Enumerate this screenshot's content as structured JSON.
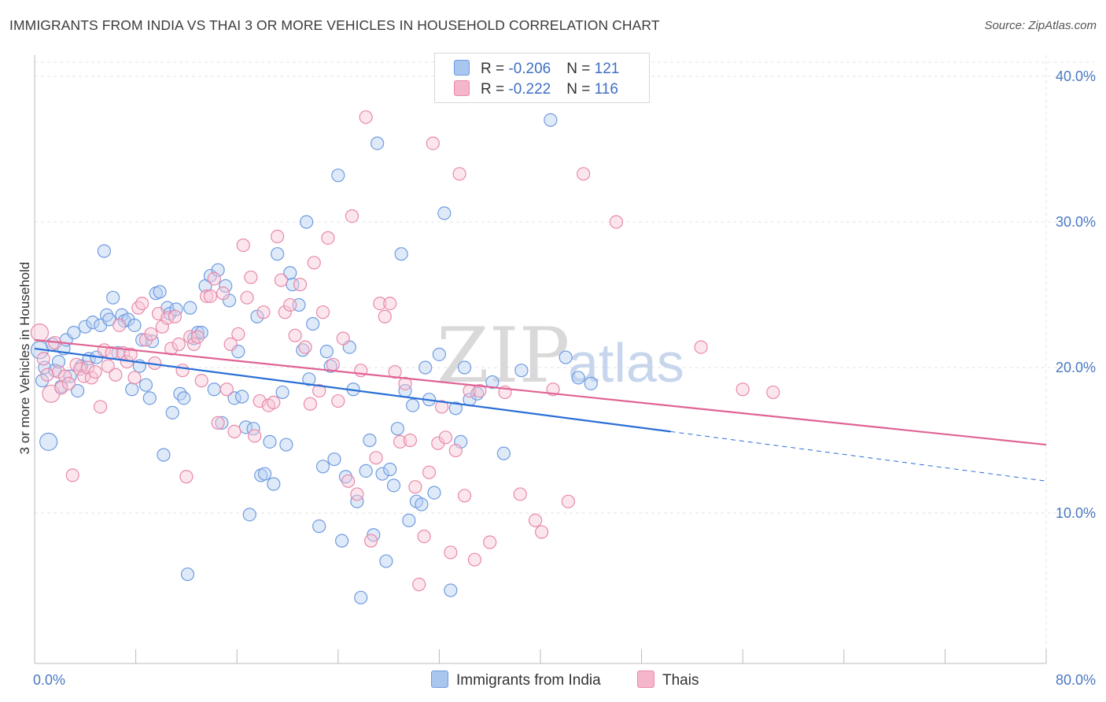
{
  "header": {
    "title": "IMMIGRANTS FROM INDIA VS THAI 3 OR MORE VEHICLES IN HOUSEHOLD CORRELATION CHART",
    "source": "Source: ZipAtlas.com"
  },
  "legend": {
    "rows": [
      {
        "r_label": "R = ",
        "r_value": "-0.206",
        "n_label": "N = ",
        "n_value": "121",
        "color": "#a9c6ee"
      },
      {
        "r_label": "R = ",
        "r_value": "-0.222",
        "n_label": "N = ",
        "n_value": "116",
        "color": "#f5b6cc"
      }
    ]
  },
  "watermark": {
    "zip": "ZIP",
    "atlas": "atlas"
  },
  "chart_data": {
    "type": "scatter",
    "ylabel": "3 or more Vehicles in Household",
    "xlim": [
      0,
      80
    ],
    "ylim": [
      0,
      42
    ],
    "x_tick_labels": [
      "0.0%",
      "80.0%"
    ],
    "y_ticks": [
      10,
      20,
      30,
      40
    ],
    "y_tick_labels": [
      "10.0%",
      "20.0%",
      "30.0%",
      "40.0%"
    ],
    "grid": true,
    "series": [
      {
        "name": "Immigrants from India",
        "color": "#6f9be0",
        "fill": "#b9d0f2",
        "trend": {
          "x0": 0,
          "y0": 21.3,
          "x1": 50.3,
          "y1": 15.6,
          "dash_to_x": 80,
          "dash_to_y": 12.2
        },
        "points": [
          [
            0.4,
            21.2
          ],
          [
            0.6,
            19.1
          ],
          [
            0.8,
            20.0
          ],
          [
            1.1,
            14.9
          ],
          [
            1.4,
            21.6
          ],
          [
            1.6,
            19.8
          ],
          [
            1.9,
            20.4
          ],
          [
            2.1,
            18.7
          ],
          [
            2.3,
            21.3
          ],
          [
            2.5,
            21.9
          ],
          [
            2.8,
            19.4
          ],
          [
            3.1,
            22.4
          ],
          [
            3.4,
            18.4
          ],
          [
            3.7,
            20.1
          ],
          [
            4.0,
            22.8
          ],
          [
            4.3,
            20.6
          ],
          [
            4.6,
            23.1
          ],
          [
            4.9,
            20.7
          ],
          [
            5.2,
            22.9
          ],
          [
            5.5,
            28.0
          ],
          [
            5.7,
            23.6
          ],
          [
            5.9,
            23.3
          ],
          [
            6.2,
            24.8
          ],
          [
            6.6,
            21.0
          ],
          [
            6.9,
            23.6
          ],
          [
            7.1,
            23.2
          ],
          [
            7.4,
            23.3
          ],
          [
            7.7,
            18.5
          ],
          [
            7.9,
            22.9
          ],
          [
            8.3,
            20.1
          ],
          [
            8.5,
            21.9
          ],
          [
            8.8,
            18.8
          ],
          [
            9.1,
            17.9
          ],
          [
            9.3,
            21.8
          ],
          [
            9.6,
            25.1
          ],
          [
            9.9,
            25.2
          ],
          [
            10.2,
            14.0
          ],
          [
            10.5,
            24.1
          ],
          [
            10.7,
            23.7
          ],
          [
            10.9,
            16.9
          ],
          [
            11.2,
            24.0
          ],
          [
            11.5,
            18.2
          ],
          [
            11.8,
            17.9
          ],
          [
            12.1,
            5.8
          ],
          [
            12.3,
            24.1
          ],
          [
            12.6,
            22.0
          ],
          [
            12.9,
            22.4
          ],
          [
            13.2,
            22.4
          ],
          [
            13.5,
            25.6
          ],
          [
            13.9,
            26.3
          ],
          [
            14.2,
            18.5
          ],
          [
            14.5,
            26.7
          ],
          [
            14.8,
            16.2
          ],
          [
            15.1,
            25.6
          ],
          [
            15.4,
            24.6
          ],
          [
            15.8,
            17.9
          ],
          [
            16.1,
            21.1
          ],
          [
            16.4,
            18.0
          ],
          [
            16.7,
            15.9
          ],
          [
            17.0,
            9.9
          ],
          [
            17.3,
            15.8
          ],
          [
            17.6,
            23.5
          ],
          [
            17.9,
            12.6
          ],
          [
            18.2,
            12.7
          ],
          [
            18.6,
            14.9
          ],
          [
            18.9,
            12.0
          ],
          [
            19.2,
            27.8
          ],
          [
            19.6,
            18.3
          ],
          [
            19.9,
            14.7
          ],
          [
            20.2,
            26.5
          ],
          [
            20.4,
            25.7
          ],
          [
            20.9,
            24.3
          ],
          [
            21.2,
            21.2
          ],
          [
            21.5,
            30.0
          ],
          [
            21.7,
            19.2
          ],
          [
            22.0,
            23.0
          ],
          [
            22.5,
            9.1
          ],
          [
            22.8,
            13.2
          ],
          [
            23.1,
            21.1
          ],
          [
            23.4,
            20.1
          ],
          [
            23.7,
            13.7
          ],
          [
            24.0,
            33.2
          ],
          [
            24.3,
            8.1
          ],
          [
            24.6,
            12.5
          ],
          [
            24.9,
            21.4
          ],
          [
            25.2,
            18.5
          ],
          [
            25.5,
            10.8
          ],
          [
            25.8,
            4.2
          ],
          [
            26.2,
            12.9
          ],
          [
            26.5,
            15.0
          ],
          [
            26.8,
            8.5
          ],
          [
            27.1,
            35.4
          ],
          [
            27.5,
            12.7
          ],
          [
            27.8,
            6.7
          ],
          [
            28.1,
            13.0
          ],
          [
            28.4,
            11.9
          ],
          [
            28.7,
            15.8
          ],
          [
            29.0,
            27.8
          ],
          [
            29.3,
            18.4
          ],
          [
            29.6,
            9.5
          ],
          [
            29.9,
            17.4
          ],
          [
            30.2,
            10.8
          ],
          [
            30.6,
            10.6
          ],
          [
            30.9,
            20.0
          ],
          [
            31.2,
            17.8
          ],
          [
            31.6,
            11.4
          ],
          [
            32.0,
            20.9
          ],
          [
            32.4,
            30.6
          ],
          [
            32.9,
            4.7
          ],
          [
            33.3,
            17.2
          ],
          [
            33.7,
            14.9
          ],
          [
            34.0,
            20.0
          ],
          [
            34.4,
            17.8
          ],
          [
            35.0,
            18.2
          ],
          [
            36.2,
            19.0
          ],
          [
            37.1,
            14.1
          ],
          [
            38.5,
            19.8
          ],
          [
            40.8,
            37.0
          ],
          [
            42.0,
            20.7
          ],
          [
            43.0,
            19.3
          ],
          [
            44.0,
            18.9
          ]
        ],
        "large_points": [
          [
            1.1,
            14.9
          ],
          [
            0.4,
            21.2
          ]
        ]
      },
      {
        "name": "Thais",
        "color": "#e889a9",
        "fill": "#f8c8d8",
        "trend": {
          "x0": 0,
          "y0": 21.9,
          "x1": 80,
          "y1": 14.7
        },
        "points": [
          [
            0.4,
            22.4
          ],
          [
            0.7,
            20.6
          ],
          [
            1.0,
            19.5
          ],
          [
            1.3,
            18.2
          ],
          [
            1.6,
            21.7
          ],
          [
            1.9,
            19.7
          ],
          [
            2.1,
            18.6
          ],
          [
            2.4,
            19.4
          ],
          [
            2.7,
            18.9
          ],
          [
            3.0,
            12.6
          ],
          [
            3.3,
            20.2
          ],
          [
            3.6,
            19.9
          ],
          [
            3.9,
            19.4
          ],
          [
            4.2,
            20.0
          ],
          [
            4.5,
            19.3
          ],
          [
            4.8,
            19.7
          ],
          [
            5.2,
            17.3
          ],
          [
            5.5,
            21.2
          ],
          [
            5.8,
            20.1
          ],
          [
            6.1,
            21.0
          ],
          [
            6.4,
            19.5
          ],
          [
            6.7,
            22.9
          ],
          [
            7.0,
            21.0
          ],
          [
            7.3,
            20.4
          ],
          [
            7.6,
            20.9
          ],
          [
            7.9,
            19.3
          ],
          [
            8.2,
            24.1
          ],
          [
            8.5,
            24.4
          ],
          [
            8.8,
            21.9
          ],
          [
            9.2,
            22.3
          ],
          [
            9.5,
            20.3
          ],
          [
            9.8,
            23.7
          ],
          [
            10.1,
            22.8
          ],
          [
            10.5,
            23.4
          ],
          [
            10.8,
            21.3
          ],
          [
            11.1,
            23.5
          ],
          [
            11.4,
            21.6
          ],
          [
            11.7,
            19.8
          ],
          [
            12.0,
            12.5
          ],
          [
            12.3,
            22.1
          ],
          [
            12.6,
            21.6
          ],
          [
            12.9,
            22.1
          ],
          [
            13.2,
            19.1
          ],
          [
            13.6,
            24.9
          ],
          [
            13.9,
            24.9
          ],
          [
            14.2,
            26.1
          ],
          [
            14.5,
            16.2
          ],
          [
            14.9,
            25.1
          ],
          [
            15.2,
            18.5
          ],
          [
            15.5,
            21.6
          ],
          [
            15.8,
            15.6
          ],
          [
            16.1,
            22.3
          ],
          [
            16.5,
            28.4
          ],
          [
            16.8,
            24.8
          ],
          [
            17.1,
            26.2
          ],
          [
            17.4,
            15.3
          ],
          [
            17.8,
            17.7
          ],
          [
            18.1,
            23.8
          ],
          [
            18.5,
            17.4
          ],
          [
            18.9,
            17.6
          ],
          [
            19.2,
            29.0
          ],
          [
            19.5,
            26.0
          ],
          [
            19.8,
            23.8
          ],
          [
            20.2,
            24.3
          ],
          [
            20.6,
            22.2
          ],
          [
            21.0,
            25.7
          ],
          [
            21.4,
            21.4
          ],
          [
            21.8,
            17.5
          ],
          [
            22.1,
            27.2
          ],
          [
            22.5,
            18.4
          ],
          [
            22.8,
            23.8
          ],
          [
            23.2,
            28.9
          ],
          [
            23.6,
            20.2
          ],
          [
            24.0,
            17.7
          ],
          [
            24.4,
            22.0
          ],
          [
            24.8,
            12.2
          ],
          [
            25.1,
            30.4
          ],
          [
            25.5,
            11.3
          ],
          [
            25.8,
            19.8
          ],
          [
            26.2,
            37.2
          ],
          [
            26.6,
            8.1
          ],
          [
            27.0,
            13.8
          ],
          [
            27.3,
            24.4
          ],
          [
            27.7,
            23.5
          ],
          [
            28.1,
            24.4
          ],
          [
            28.5,
            19.7
          ],
          [
            28.9,
            14.9
          ],
          [
            29.3,
            18.9
          ],
          [
            29.7,
            15.0
          ],
          [
            30.1,
            11.8
          ],
          [
            30.4,
            5.1
          ],
          [
            30.8,
            8.4
          ],
          [
            31.2,
            12.8
          ],
          [
            31.5,
            35.4
          ],
          [
            31.9,
            14.8
          ],
          [
            32.2,
            17.3
          ],
          [
            32.5,
            15.2
          ],
          [
            32.9,
            7.3
          ],
          [
            33.3,
            14.3
          ],
          [
            33.6,
            33.3
          ],
          [
            34.0,
            11.2
          ],
          [
            34.4,
            18.4
          ],
          [
            34.8,
            6.8
          ],
          [
            35.2,
            18.4
          ],
          [
            36.0,
            8.0
          ],
          [
            37.2,
            18.3
          ],
          [
            38.4,
            11.3
          ],
          [
            39.6,
            9.5
          ],
          [
            40.1,
            8.7
          ],
          [
            41.0,
            18.5
          ],
          [
            42.2,
            10.8
          ],
          [
            43.4,
            33.3
          ],
          [
            46.0,
            30.0
          ],
          [
            52.7,
            21.4
          ],
          [
            58.4,
            18.3
          ],
          [
            56.0,
            18.5
          ]
        ],
        "large_points": [
          [
            0.4,
            22.4
          ],
          [
            1.3,
            18.2
          ]
        ]
      }
    ]
  }
}
